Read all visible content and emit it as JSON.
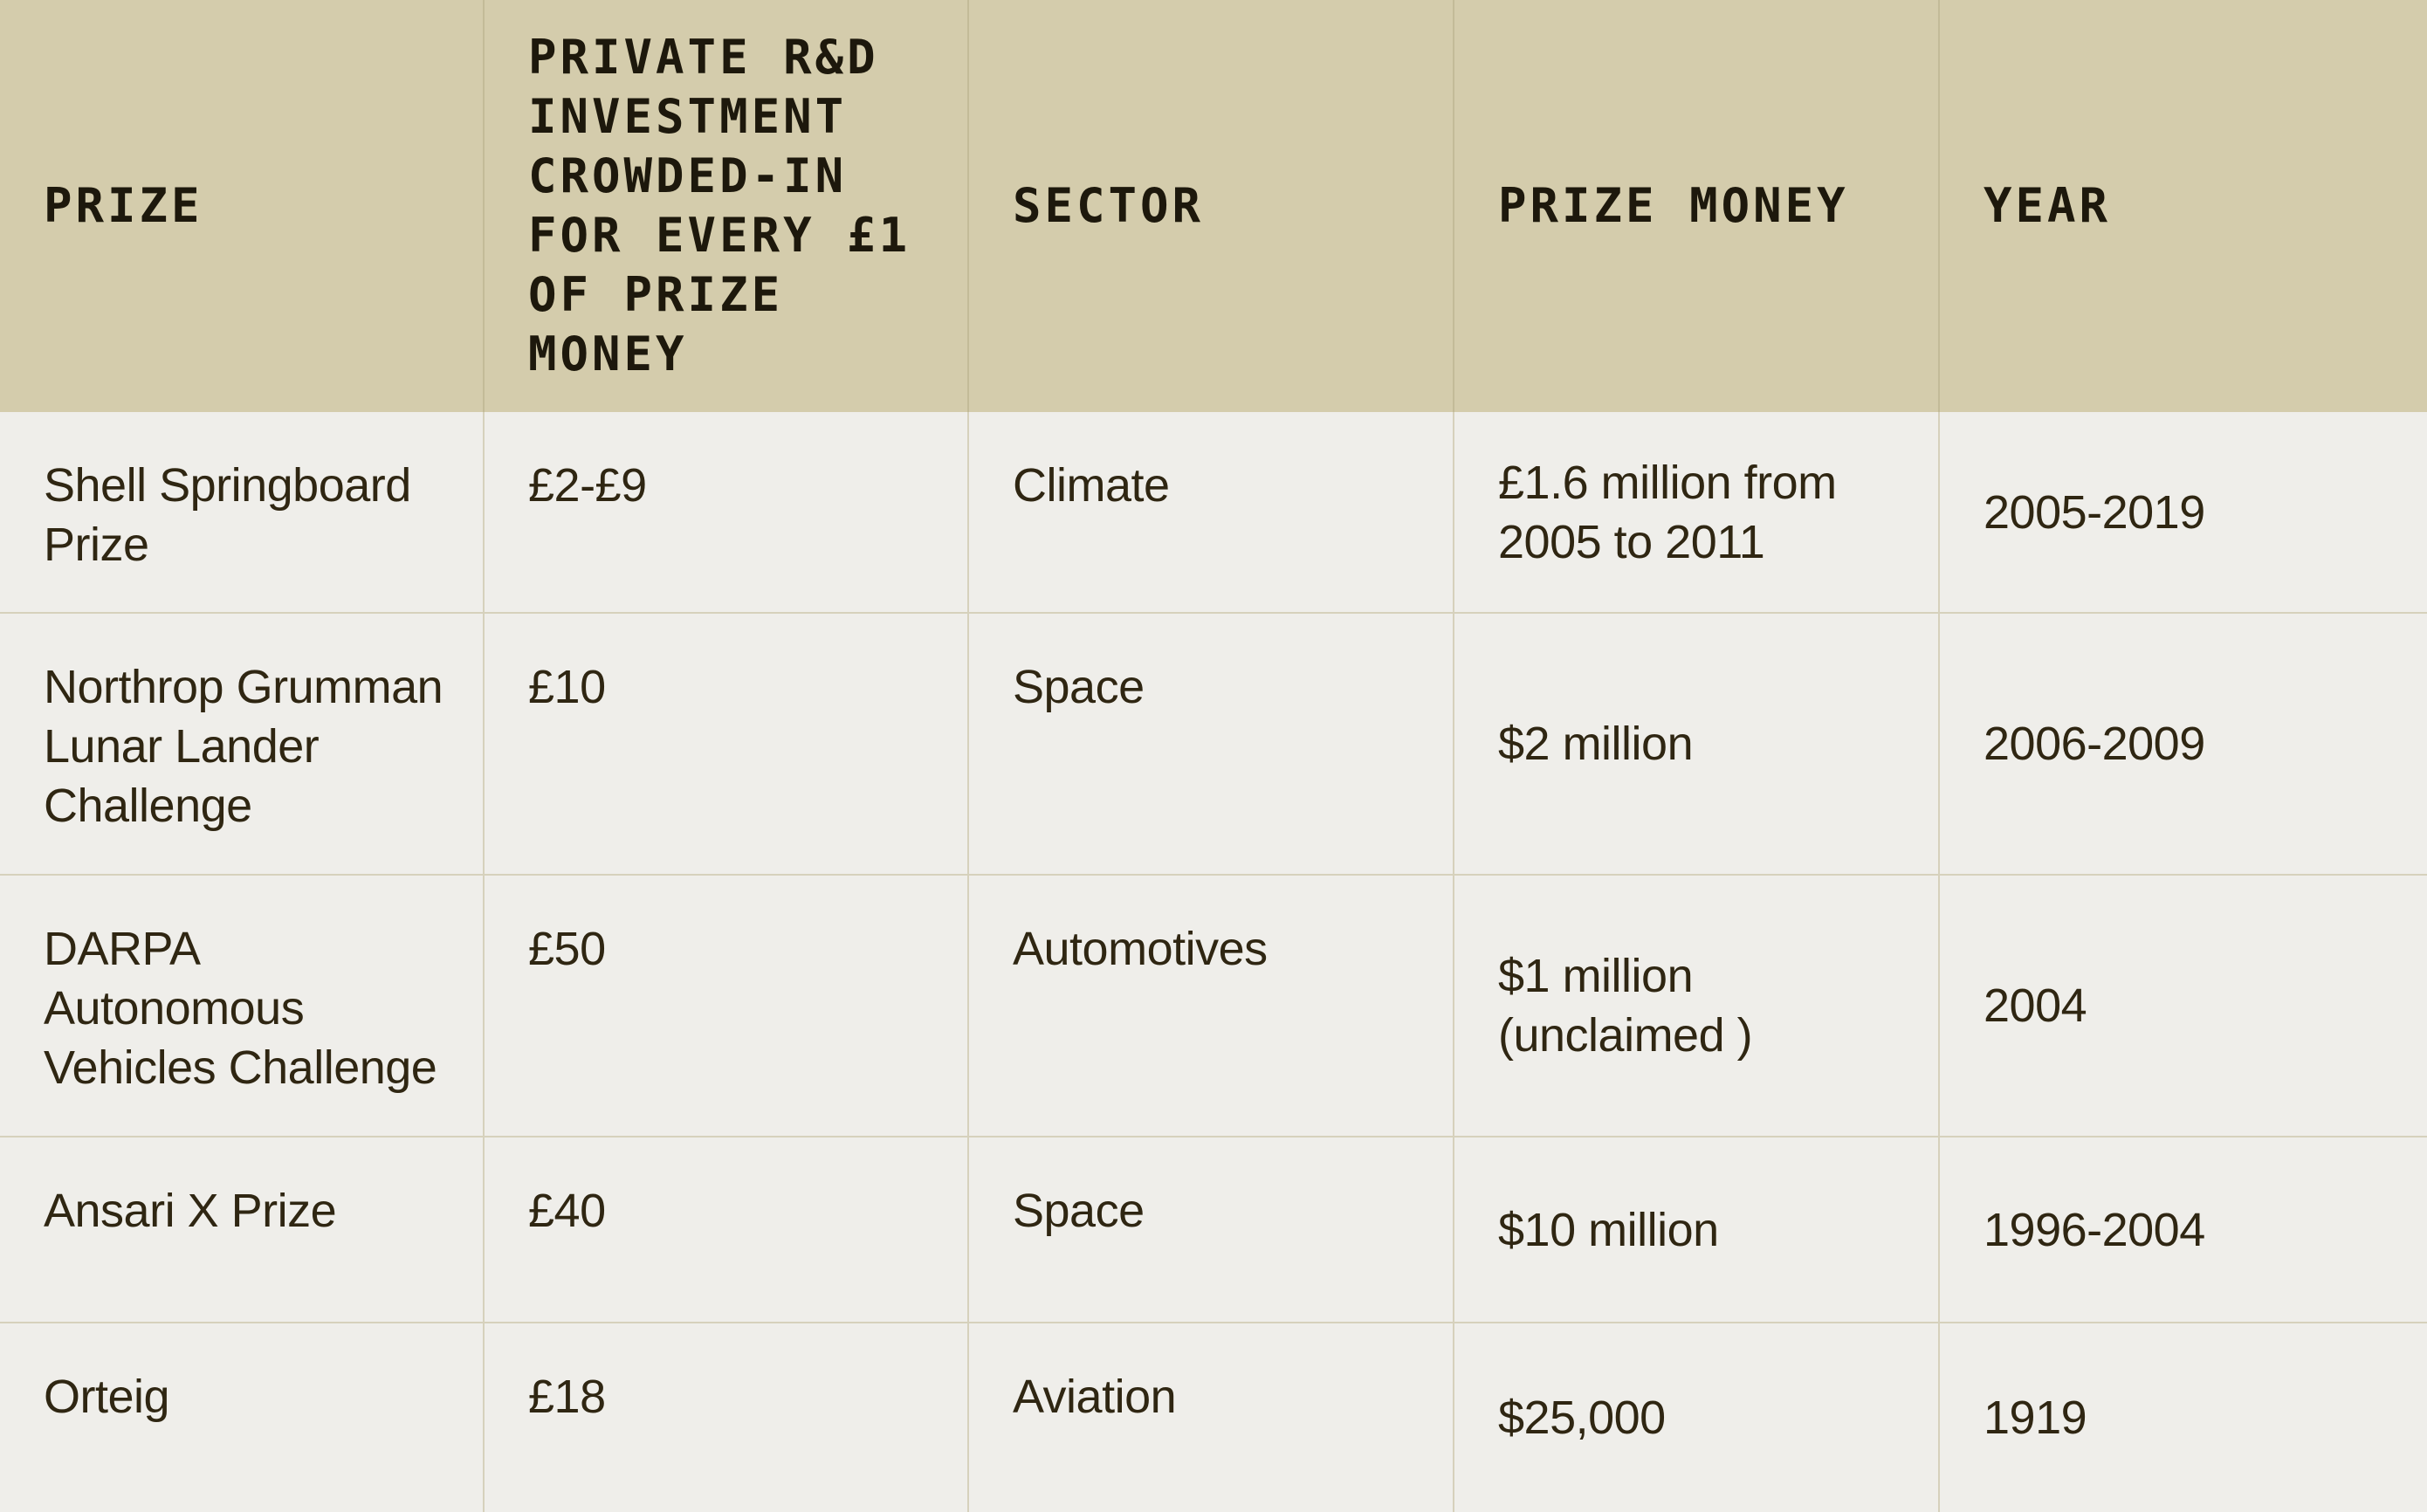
{
  "table": {
    "headers": [
      "PRIZE",
      "PRIVATE R&D\nINVESTMENT\nCROWDED-IN\nFOR EVERY £1\nOF PRIZE\nMONEY",
      "SECTOR",
      "PRIZE MONEY",
      "YEAR"
    ],
    "rows": [
      {
        "prize": "Shell Springboard Prize",
        "investment": "£2-£9",
        "sector": "Climate",
        "prize_money": "£1.6 million from 2005 to 2011",
        "year": "2005-2019"
      },
      {
        "prize": "Northrop Grumman Lunar Lander Challenge",
        "investment": "£10",
        "sector": "Space",
        "prize_money": "$2 million",
        "year": "2006-2009"
      },
      {
        "prize": "DARPA Autonomous Vehicles Challenge",
        "investment": "£50",
        "sector": "Automotives",
        "prize_money": "$1 million (unclaimed )",
        "year": "2004"
      },
      {
        "prize": "Ansari X Prize",
        "investment": "£40",
        "sector": "Space",
        "prize_money": "$10 million",
        "year": "1996-2004"
      },
      {
        "prize": "Orteig",
        "investment": "£18",
        "sector": "Aviation",
        "prize_money": "$25,000",
        "year": "1919"
      }
    ]
  }
}
